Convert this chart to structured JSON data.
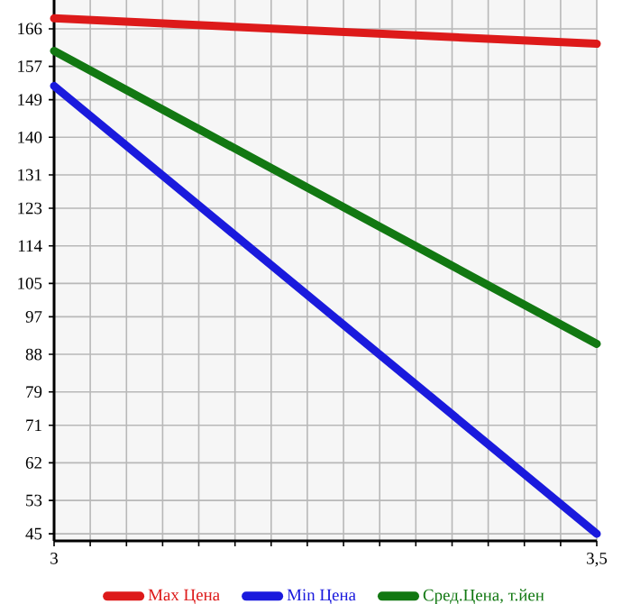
{
  "chart_data": {
    "type": "line",
    "x": [
      3,
      3.5
    ],
    "series": [
      {
        "name": "Max Цена",
        "color": "#dd1a1a",
        "values": [
          168.5,
          162.4
        ]
      },
      {
        "name": "Min Цена",
        "color": "#1a1add",
        "values": [
          152.3,
          45
        ]
      },
      {
        "name": "Сред.Цена, т.йен",
        "color": "#127812",
        "values": [
          160.7,
          90.5
        ]
      }
    ],
    "xlim": [
      3,
      3.5
    ],
    "xticks": [
      {
        "value": 3,
        "label": "3"
      },
      {
        "value": 3.0333,
        "label": null
      },
      {
        "value": 3.0667,
        "label": null
      },
      {
        "value": 3.1,
        "label": null
      },
      {
        "value": 3.1333,
        "label": null
      },
      {
        "value": 3.1667,
        "label": null
      },
      {
        "value": 3.2,
        "label": null
      },
      {
        "value": 3.2333,
        "label": null
      },
      {
        "value": 3.2667,
        "label": null
      },
      {
        "value": 3.3,
        "label": null
      },
      {
        "value": 3.3333,
        "label": null
      },
      {
        "value": 3.3667,
        "label": null
      },
      {
        "value": 3.4,
        "label": null
      },
      {
        "value": 3.4333,
        "label": null
      },
      {
        "value": 3.4667,
        "label": null
      },
      {
        "value": 3.5,
        "label": "3,5"
      }
    ],
    "ylim": [
      43.3,
      172.9
    ],
    "yticks": [
      45,
      53,
      62,
      71,
      79,
      88,
      97,
      105,
      114,
      123,
      131,
      140,
      149,
      157,
      166
    ],
    "grid": true,
    "legend": "bottom",
    "marker": "none",
    "line_style": "solid"
  }
}
